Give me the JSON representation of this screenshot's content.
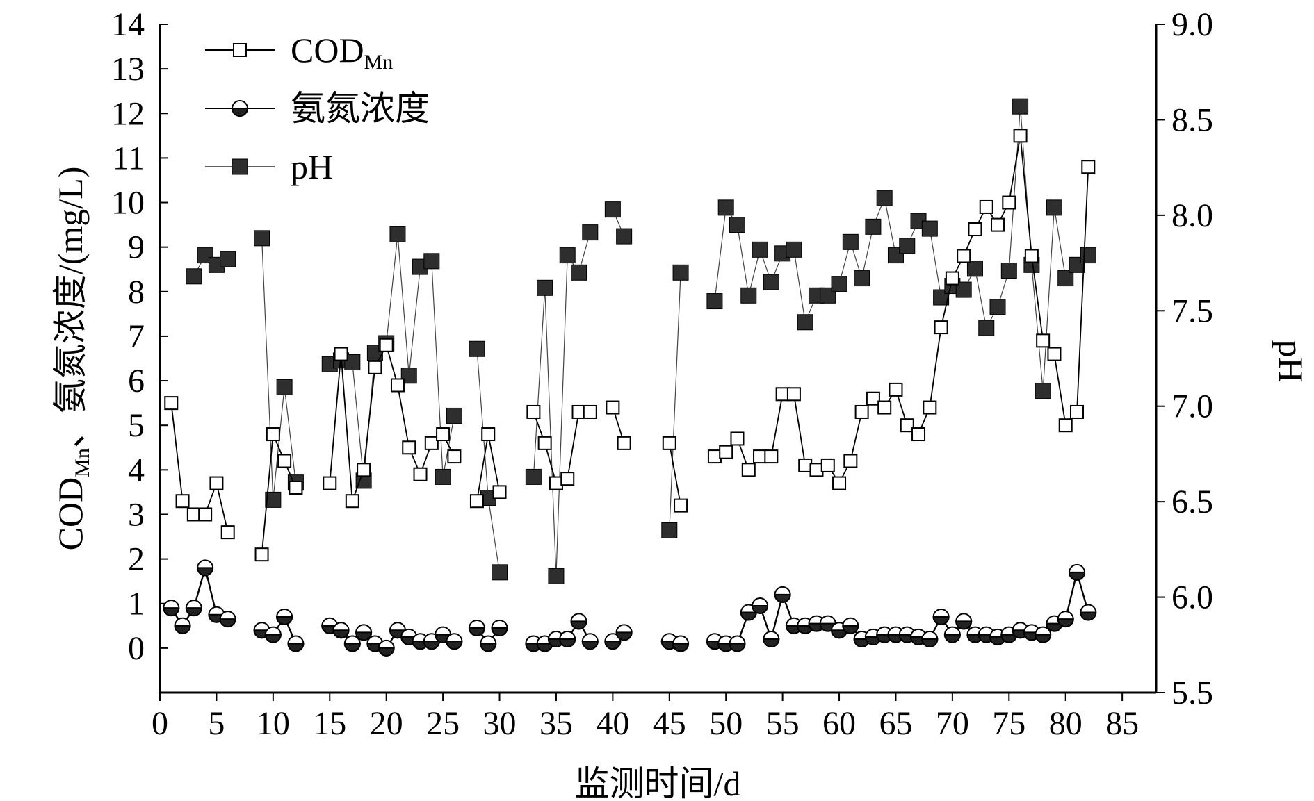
{
  "chart_data": {
    "type": "line",
    "xlabel": "监测时间/d",
    "ylabel_left": {
      "main": "COD",
      "sub": "Mn",
      "rest": "、氨氮浓度/(mg/L)"
    },
    "ylabel_right": "pH",
    "xlim": [
      0,
      88
    ],
    "ylim_left": [
      -1,
      14
    ],
    "ylim_right": [
      5.5,
      9.0
    ],
    "x_ticks": [
      "0",
      "5",
      "10",
      "15",
      "20",
      "25",
      "30",
      "35",
      "40",
      "45",
      "50",
      "55",
      "60",
      "65",
      "70",
      "75",
      "80",
      "85"
    ],
    "y_left_ticks": [
      "0",
      "1",
      "2",
      "3",
      "4",
      "5",
      "6",
      "7",
      "8",
      "9",
      "10",
      "11",
      "12",
      "13",
      "14"
    ],
    "y_right_ticks": [
      "5.5",
      "6.0",
      "6.5",
      "7.0",
      "7.5",
      "8.0",
      "8.5",
      "9.0"
    ],
    "grid": false,
    "legend_position": "top-left",
    "legend": [
      {
        "main": "COD",
        "sub": "Mn",
        "marker": "open-square"
      },
      {
        "main": "氨氮浓度",
        "sub": "",
        "marker": "half-filled-circle"
      },
      {
        "main": "pH",
        "sub": "",
        "marker": "filled-square"
      }
    ],
    "series": [
      {
        "key": "cod",
        "axis": "left",
        "segments": [
          [
            [
              1,
              5.5
            ],
            [
              2,
              3.3
            ],
            [
              3,
              3.0
            ],
            [
              4,
              3.0
            ],
            [
              5,
              3.7
            ],
            [
              6,
              2.6
            ]
          ],
          [
            [
              9,
              2.1
            ],
            [
              10,
              4.8
            ],
            [
              11,
              4.2
            ],
            [
              12,
              3.6
            ]
          ],
          [
            [
              15,
              3.7
            ],
            [
              16,
              6.6
            ],
            [
              17,
              3.3
            ],
            [
              18,
              4.0
            ],
            [
              19,
              6.3
            ],
            [
              20,
              6.8
            ],
            [
              21,
              5.9
            ],
            [
              22,
              4.5
            ],
            [
              23,
              3.9
            ],
            [
              24,
              4.6
            ],
            [
              25,
              4.8
            ],
            [
              26,
              4.3
            ]
          ],
          [
            [
              28,
              3.3
            ],
            [
              29,
              4.8
            ],
            [
              30,
              3.5
            ]
          ],
          [
            [
              33,
              5.3
            ],
            [
              34,
              4.6
            ],
            [
              35,
              3.7
            ],
            [
              36,
              3.8
            ],
            [
              37,
              5.3
            ],
            [
              38,
              5.3
            ]
          ],
          [
            [
              40,
              5.4
            ],
            [
              41,
              4.6
            ]
          ],
          [
            [
              45,
              4.6
            ],
            [
              46,
              3.2
            ]
          ],
          [
            [
              49,
              4.3
            ],
            [
              50,
              4.4
            ],
            [
              51,
              4.7
            ],
            [
              52,
              4.0
            ],
            [
              53,
              4.3
            ],
            [
              54,
              4.3
            ],
            [
              55,
              5.7
            ],
            [
              56,
              5.7
            ],
            [
              57,
              4.1
            ],
            [
              58,
              4.0
            ],
            [
              59,
              4.1
            ],
            [
              60,
              3.7
            ],
            [
              61,
              4.2
            ],
            [
              62,
              5.3
            ],
            [
              63,
              5.6
            ],
            [
              64,
              5.4
            ],
            [
              65,
              5.8
            ],
            [
              66,
              5.0
            ],
            [
              67,
              4.8
            ],
            [
              68,
              5.4
            ],
            [
              69,
              7.2
            ],
            [
              70,
              8.3
            ],
            [
              71,
              8.8
            ],
            [
              72,
              9.4
            ],
            [
              73,
              9.9
            ],
            [
              74,
              9.5
            ],
            [
              75,
              10.0
            ],
            [
              76,
              11.5
            ],
            [
              77,
              8.8
            ],
            [
              78,
              6.9
            ],
            [
              79,
              6.6
            ],
            [
              80,
              5.0
            ],
            [
              81,
              5.3
            ],
            [
              82,
              10.8
            ]
          ]
        ]
      },
      {
        "key": "nh3n",
        "axis": "left",
        "segments": [
          [
            [
              1,
              0.9
            ],
            [
              2,
              0.5
            ],
            [
              3,
              0.9
            ],
            [
              4,
              1.8
            ],
            [
              5,
              0.75
            ],
            [
              6,
              0.65
            ]
          ],
          [
            [
              9,
              0.4
            ],
            [
              10,
              0.3
            ],
            [
              11,
              0.7
            ],
            [
              12,
              0.1
            ]
          ],
          [
            [
              15,
              0.5
            ],
            [
              16,
              0.4
            ],
            [
              17,
              0.1
            ],
            [
              18,
              0.35
            ],
            [
              19,
              0.1
            ],
            [
              20,
              0.0
            ],
            [
              21,
              0.4
            ],
            [
              22,
              0.25
            ],
            [
              23,
              0.15
            ],
            [
              24,
              0.15
            ],
            [
              25,
              0.3
            ],
            [
              26,
              0.15
            ]
          ],
          [
            [
              28,
              0.45
            ],
            [
              29,
              0.1
            ],
            [
              30,
              0.45
            ]
          ],
          [
            [
              33,
              0.1
            ],
            [
              34,
              0.1
            ],
            [
              35,
              0.2
            ],
            [
              36,
              0.2
            ],
            [
              37,
              0.6
            ],
            [
              38,
              0.15
            ]
          ],
          [
            [
              40,
              0.15
            ],
            [
              41,
              0.35
            ]
          ],
          [
            [
              45,
              0.15
            ],
            [
              46,
              0.1
            ]
          ],
          [
            [
              49,
              0.15
            ],
            [
              50,
              0.1
            ],
            [
              51,
              0.1
            ],
            [
              52,
              0.8
            ],
            [
              53,
              0.95
            ],
            [
              54,
              0.2
            ],
            [
              55,
              1.2
            ],
            [
              56,
              0.5
            ],
            [
              57,
              0.5
            ],
            [
              58,
              0.55
            ],
            [
              59,
              0.55
            ],
            [
              60,
              0.4
            ],
            [
              61,
              0.5
            ],
            [
              62,
              0.2
            ],
            [
              63,
              0.25
            ],
            [
              64,
              0.3
            ],
            [
              65,
              0.3
            ],
            [
              66,
              0.3
            ],
            [
              67,
              0.25
            ],
            [
              68,
              0.2
            ],
            [
              69,
              0.7
            ],
            [
              70,
              0.3
            ],
            [
              71,
              0.6
            ],
            [
              72,
              0.3
            ],
            [
              73,
              0.3
            ],
            [
              74,
              0.25
            ],
            [
              75,
              0.3
            ],
            [
              76,
              0.4
            ],
            [
              77,
              0.35
            ],
            [
              78,
              0.3
            ],
            [
              79,
              0.55
            ],
            [
              80,
              0.65
            ],
            [
              81,
              1.7
            ],
            [
              82,
              0.8
            ]
          ]
        ]
      },
      {
        "key": "ph",
        "axis": "right",
        "segments": [
          [
            [
              3,
              7.68
            ],
            [
              4,
              7.79
            ],
            [
              5,
              7.74
            ],
            [
              6,
              7.77
            ]
          ],
          [
            [
              9,
              7.88
            ],
            [
              10,
              6.51
            ],
            [
              11,
              7.1
            ],
            [
              12,
              6.6
            ]
          ],
          [
            [
              15,
              7.22
            ],
            [
              16,
              7.24
            ],
            [
              17,
              7.23
            ],
            [
              18,
              6.61
            ],
            [
              19,
              7.28
            ],
            [
              20,
              7.33
            ],
            [
              21,
              7.9
            ],
            [
              22,
              7.16
            ],
            [
              23,
              7.73
            ],
            [
              24,
              7.76
            ],
            [
              25,
              6.63
            ],
            [
              26,
              6.95
            ]
          ],
          [
            [
              28,
              7.3
            ],
            [
              29,
              6.52
            ],
            [
              30,
              6.13
            ]
          ],
          [
            [
              33,
              6.63
            ],
            [
              34,
              7.62
            ],
            [
              35,
              6.11
            ],
            [
              36,
              7.79
            ],
            [
              37,
              7.7
            ],
            [
              38,
              7.91
            ]
          ],
          [
            [
              40,
              8.03
            ],
            [
              41,
              7.89
            ]
          ],
          [
            [
              45,
              6.35
            ],
            [
              46,
              7.7
            ]
          ],
          [
            [
              49,
              7.55
            ],
            [
              50,
              8.04
            ],
            [
              51,
              7.95
            ],
            [
              52,
              7.58
            ],
            [
              53,
              7.82
            ],
            [
              54,
              7.65
            ],
            [
              55,
              7.8
            ],
            [
              56,
              7.82
            ],
            [
              57,
              7.44
            ],
            [
              58,
              7.58
            ],
            [
              59,
              7.58
            ],
            [
              60,
              7.64
            ],
            [
              61,
              7.86
            ],
            [
              62,
              7.67
            ],
            [
              63,
              7.94
            ],
            [
              64,
              8.09
            ],
            [
              65,
              7.79
            ],
            [
              66,
              7.84
            ],
            [
              67,
              7.97
            ],
            [
              68,
              7.93
            ],
            [
              69,
              7.57
            ],
            [
              70,
              7.63
            ],
            [
              71,
              7.61
            ],
            [
              72,
              7.72
            ],
            [
              73,
              7.41
            ],
            [
              74,
              7.52
            ],
            [
              75,
              7.71
            ],
            [
              76,
              8.57
            ],
            [
              77,
              7.74
            ],
            [
              78,
              7.08
            ],
            [
              79,
              8.04
            ],
            [
              80,
              7.67
            ],
            [
              81,
              7.74
            ],
            [
              82,
              7.79
            ]
          ]
        ]
      }
    ]
  }
}
